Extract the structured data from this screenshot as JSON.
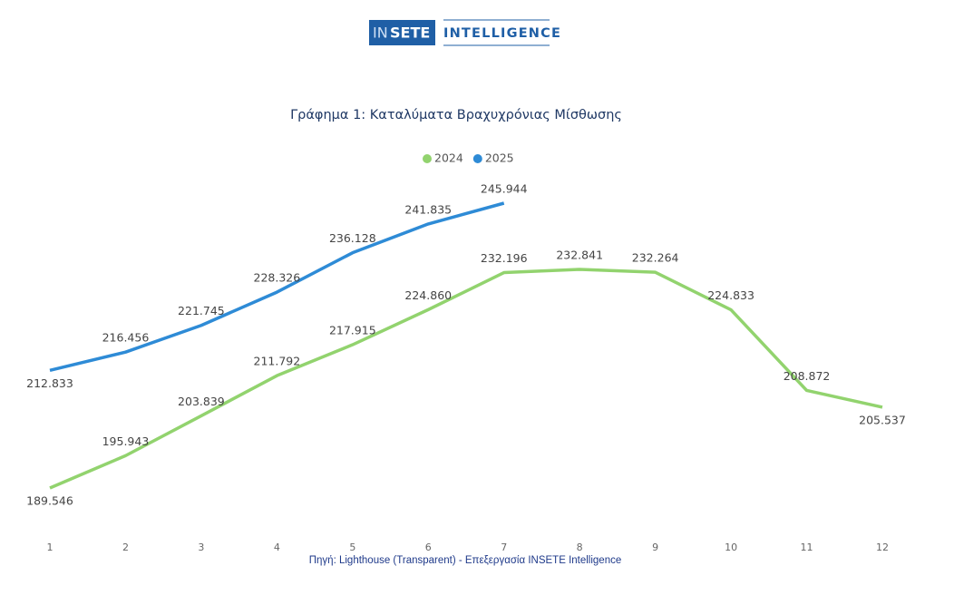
{
  "logo": {
    "prefix": "IN",
    "brand": "SETE",
    "sub": "INTELLIGENCE"
  },
  "chart_data": {
    "type": "line",
    "title": "Γράφημα 1: Καταλύματα Βραχυχρόνιας Μίσθωσης",
    "source": "Πηγή: Lighthouse (Transparent) - Επεξεργασία INSETE Intelligence",
    "categories": [
      "1",
      "2",
      "3",
      "4",
      "5",
      "6",
      "7",
      "8",
      "9",
      "10",
      "11",
      "12"
    ],
    "series": [
      {
        "name": "2024",
        "color": "#92d36e",
        "values": [
          189546,
          195943,
          203839,
          211792,
          217915,
          224860,
          232196,
          232841,
          232264,
          224833,
          208872,
          205537
        ],
        "value_labels": [
          "189.546",
          "195.943",
          "203.839",
          "211.792",
          "217.915",
          "224.860",
          "232.196",
          "232.841",
          "232.264",
          "224.833",
          "208.872",
          "205.537"
        ]
      },
      {
        "name": "2025",
        "color": "#2e8bd6",
        "values": [
          212833,
          216456,
          221745,
          228326,
          236128,
          241835,
          245944,
          null,
          null,
          null,
          null,
          null
        ],
        "value_labels": [
          "212.833",
          "216.456",
          "221.745",
          "228.326",
          "236.128",
          "241.835",
          "245.944",
          null,
          null,
          null,
          null,
          null
        ]
      }
    ],
    "legend": "top"
  }
}
